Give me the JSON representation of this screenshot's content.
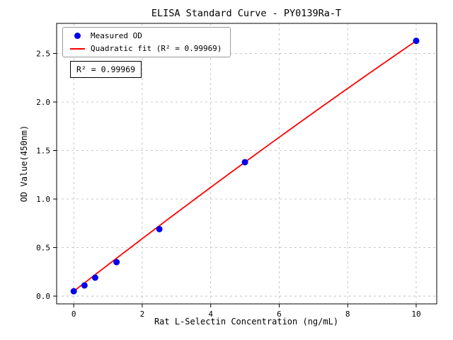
{
  "chart_data": {
    "type": "scatter",
    "title": "ELISA Standard Curve - PY0139Ra-T",
    "xlabel": "Rat L-Selectin Concentration (ng/mL)",
    "ylabel": "OD Value(450nm)",
    "xlim": [
      -0.5,
      10.6
    ],
    "ylim": [
      -0.08,
      2.81
    ],
    "xticks": [
      0,
      2,
      4,
      6,
      8,
      10
    ],
    "yticks": [
      0.0,
      0.5,
      1.0,
      1.5,
      2.0,
      2.5
    ],
    "grid": true,
    "legend_position": "upper left",
    "series": [
      {
        "name": "Measured OD",
        "type": "scatter",
        "color": "#0000ee",
        "x": [
          0,
          0.313,
          0.625,
          1.25,
          2.5,
          5,
          10
        ],
        "y": [
          0.05,
          0.11,
          0.19,
          0.35,
          0.69,
          1.38,
          2.63
        ]
      },
      {
        "name": "Quadratic fit (R² = 0.99969)",
        "type": "line",
        "color": "#ff0000",
        "fit_coeffs": [
          0.05,
          0.274,
          -0.0016
        ],
        "x_range": [
          0,
          10
        ]
      }
    ],
    "annotation": "R² = 0.99969",
    "r_squared": 0.99969
  }
}
